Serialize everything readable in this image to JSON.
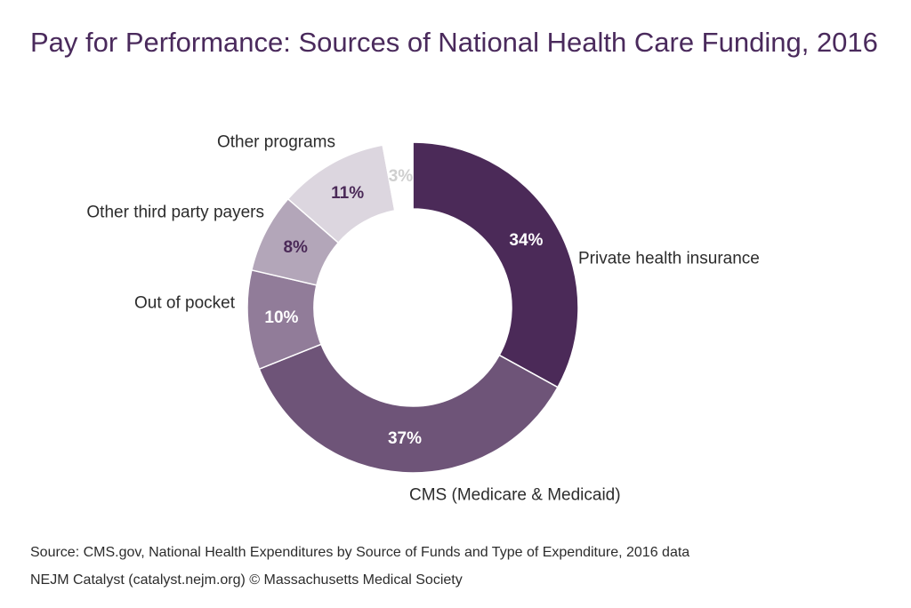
{
  "chart_data": {
    "type": "pie",
    "donut": true,
    "title": "Pay for Performance: Sources of National Health Care Funding, 2016",
    "start_category": "Private health insurance",
    "direction": "clockwise",
    "slices": [
      {
        "label": "Private health insurance",
        "value": 34,
        "value_label": "34%",
        "color": "#4b2a58",
        "value_label_color": "#ffffff"
      },
      {
        "label": "CMS (Medicare & Medicaid)",
        "value": 37,
        "value_label": "37%",
        "color": "#6e5478",
        "value_label_color": "#ffffff"
      },
      {
        "label": "Out of pocket",
        "value": 10,
        "value_label": "10%",
        "color": "#917c99",
        "value_label_color": "#ffffff"
      },
      {
        "label": "Other third party payers",
        "value": 8,
        "value_label": "8%",
        "color": "#b3a6b9",
        "value_label_color": "#4b2a58"
      },
      {
        "label": "Other programs",
        "value": 11,
        "value_label": "11%",
        "color": "#dcd6df",
        "value_label_color": "#4b2a58"
      },
      {
        "label": "",
        "value": 3,
        "value_label": "3%",
        "color": "#ffffff",
        "value_label_color": "#cfcfcf"
      }
    ]
  },
  "footer": {
    "source": "Source: CMS.gov, National Health Expenditures by Source of Funds and Type of Expenditure, 2016 data",
    "credit": "NEJM Catalyst (catalyst.nejm.org) © Massachusetts Medical Society"
  },
  "colors": {
    "title": "#4a2a5c",
    "label_text": "#2c2c2c"
  }
}
